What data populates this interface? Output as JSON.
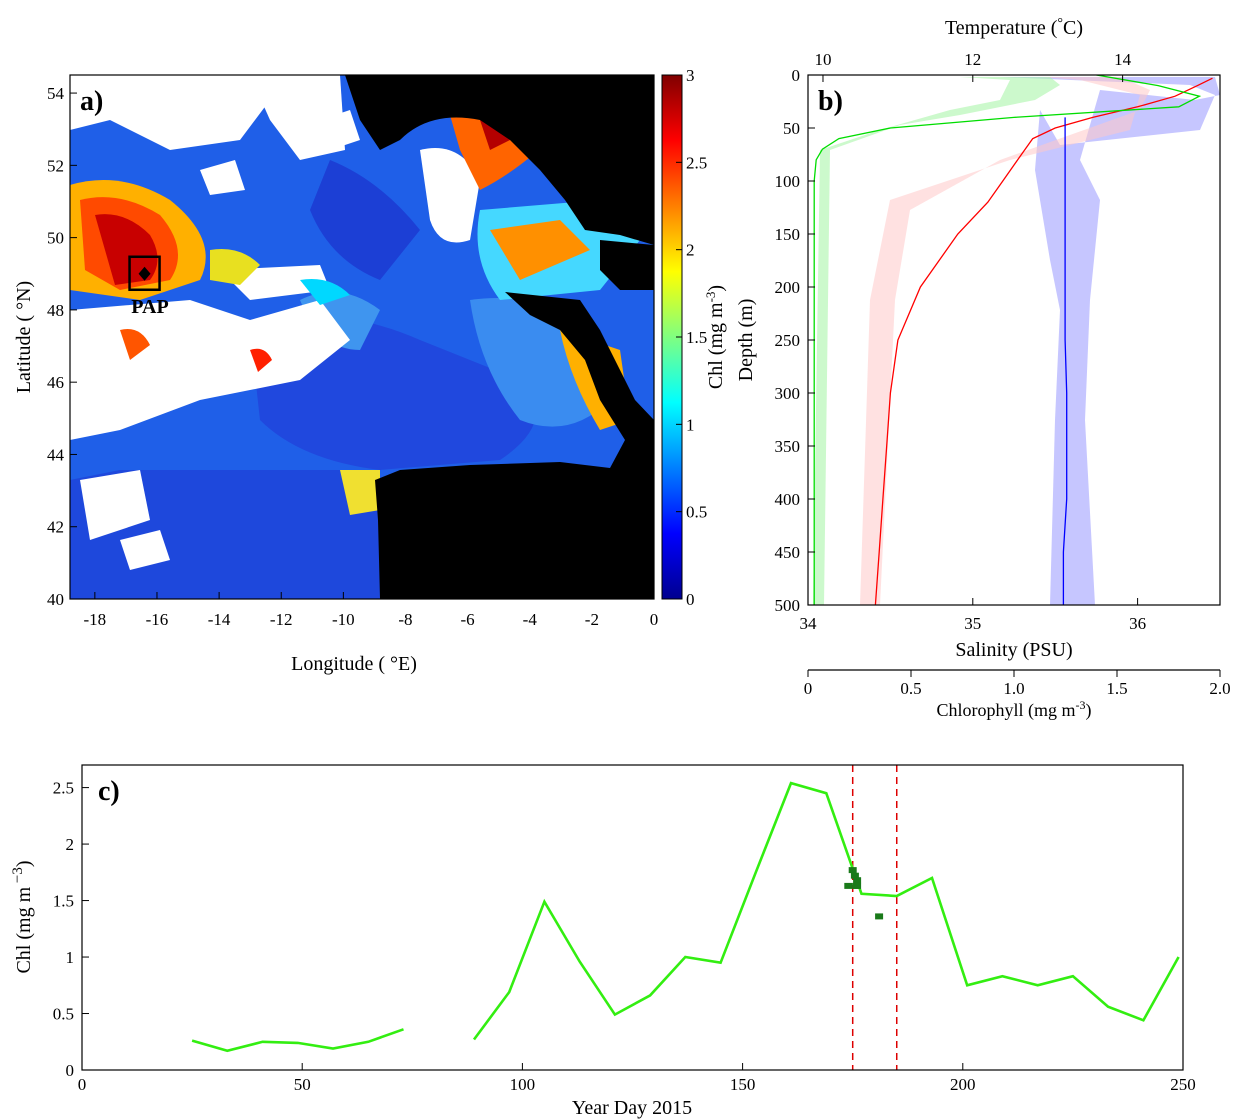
{
  "chart_data": [
    {
      "panel": "a)",
      "type": "heatmap",
      "xlabel": "Longitude ( °E)",
      "ylabel": "Latitude ( °N)",
      "x_ticks": [
        "-18",
        "-16",
        "-14",
        "-12",
        "-10",
        "-8",
        "-6",
        "-4",
        "-2",
        "0"
      ],
      "y_ticks": [
        "54",
        "52",
        "50",
        "48",
        "46",
        "44",
        "42",
        "40"
      ],
      "xlim": [
        -18.8,
        0
      ],
      "ylim": [
        40,
        54.5
      ],
      "colorbar": {
        "label": "Chl (mg m-3)",
        "label_main": "Chl (mg m",
        "label_sup": "-3",
        "label_end": ")",
        "ticks": [
          "0",
          "0.5",
          "1",
          "1.5",
          "2",
          "2.5",
          "3"
        ],
        "range": [
          0,
          3
        ],
        "colormap": "jet"
      },
      "station": {
        "name": "PAP",
        "lon": -16.4,
        "lat": 49.0
      },
      "land_color": "#000000",
      "missing_color": "#ffffff"
    },
    {
      "panel": "b)",
      "type": "line",
      "ylabel": "Depth (m)",
      "y_ticks": [
        "0",
        "50",
        "100",
        "150",
        "200",
        "250",
        "300",
        "350",
        "400",
        "450",
        "500"
      ],
      "ylim": [
        0,
        500
      ],
      "top_axis": {
        "title_main": "Temperature (",
        "title_sup": "°",
        "title_end": "C)",
        "ticks": [
          "10",
          "12",
          "14"
        ],
        "range": [
          9.8,
          15.3
        ]
      },
      "bottom_axis": {
        "title": "Salinity (PSU)",
        "ticks": [
          "34",
          "35",
          "36"
        ],
        "range": [
          34,
          36.5
        ]
      },
      "bottom_axis2": {
        "title_main": "Chlorophyll (mg m",
        "title_sup": "-3",
        "title_end": ")",
        "ticks": [
          "0",
          "0.5",
          "1.0",
          "1.5",
          "2.0"
        ],
        "range": [
          0,
          2.0
        ]
      },
      "series": [
        {
          "variable": "temperature",
          "color": "#ff0000",
          "depth": [
            3,
            10,
            20,
            30,
            40,
            50,
            60,
            80,
            100,
            120,
            150,
            200,
            250,
            300,
            350,
            400,
            450,
            500
          ],
          "values": [
            15.2,
            15.0,
            14.7,
            14.2,
            13.6,
            13.1,
            12.8,
            12.6,
            12.4,
            12.2,
            11.8,
            11.3,
            11.0,
            10.9,
            10.85,
            10.8,
            10.75,
            10.7
          ]
        },
        {
          "variable": "salinity",
          "color": "#0000ff",
          "depth": [
            40,
            60,
            80,
            100,
            150,
            200,
            250,
            300,
            350,
            400,
            450,
            500
          ],
          "values": [
            35.56,
            35.56,
            35.56,
            35.56,
            35.56,
            35.56,
            35.56,
            35.57,
            35.57,
            35.57,
            35.55,
            35.55
          ]
        },
        {
          "variable": "chlorophyll",
          "color": "#00dd00",
          "depth": [
            0,
            10,
            20,
            30,
            40,
            50,
            60,
            70,
            80,
            100,
            150,
            200,
            300,
            400,
            500
          ],
          "values": [
            1.4,
            1.7,
            1.9,
            1.8,
            1.0,
            0.4,
            0.15,
            0.07,
            0.04,
            0.03,
            0.03,
            0.03,
            0.03,
            0.03,
            0.03
          ]
        }
      ]
    },
    {
      "panel": "c)",
      "type": "line",
      "xlabel": "Year Day 2015",
      "ylabel_main": "Chl (mg m",
      "ylabel_sup": " −3",
      "ylabel_end": ")",
      "xlim": [
        0,
        250
      ],
      "ylim": [
        0,
        2.7
      ],
      "x_ticks": [
        "0",
        "50",
        "100",
        "150",
        "200",
        "250"
      ],
      "y_ticks": [
        "0",
        "0.5",
        "1",
        "1.5",
        "2",
        "2.5"
      ],
      "series": [
        {
          "color": "#33ee11",
          "x": [
            25,
            33,
            41,
            49,
            57,
            65,
            73
          ],
          "values": [
            0.26,
            0.17,
            0.25,
            0.24,
            0.19,
            0.25,
            0.36
          ]
        },
        {
          "color": "#33ee11",
          "x": [
            89,
            97,
            105,
            113,
            121,
            129,
            137,
            145,
            153,
            161,
            169,
            177,
            185,
            193,
            201,
            209,
            217,
            225,
            233,
            241,
            249
          ],
          "values": [
            0.27,
            0.69,
            1.49,
            0.96,
            0.49,
            0.66,
            1.0,
            0.95,
            1.75,
            2.54,
            2.45,
            1.56,
            1.54,
            1.7,
            0.75,
            0.83,
            0.75,
            0.83,
            0.56,
            0.44,
            1.0
          ]
        }
      ],
      "samples": {
        "color": "#1a7a1a",
        "x": [
          175,
          175.5,
          176,
          176,
          174,
          175.8,
          181
        ],
        "values": [
          1.77,
          1.72,
          1.68,
          1.63,
          1.63,
          1.63,
          1.36
        ]
      },
      "vlines": {
        "color": "#dd0000",
        "x": [
          175,
          185
        ]
      }
    }
  ]
}
